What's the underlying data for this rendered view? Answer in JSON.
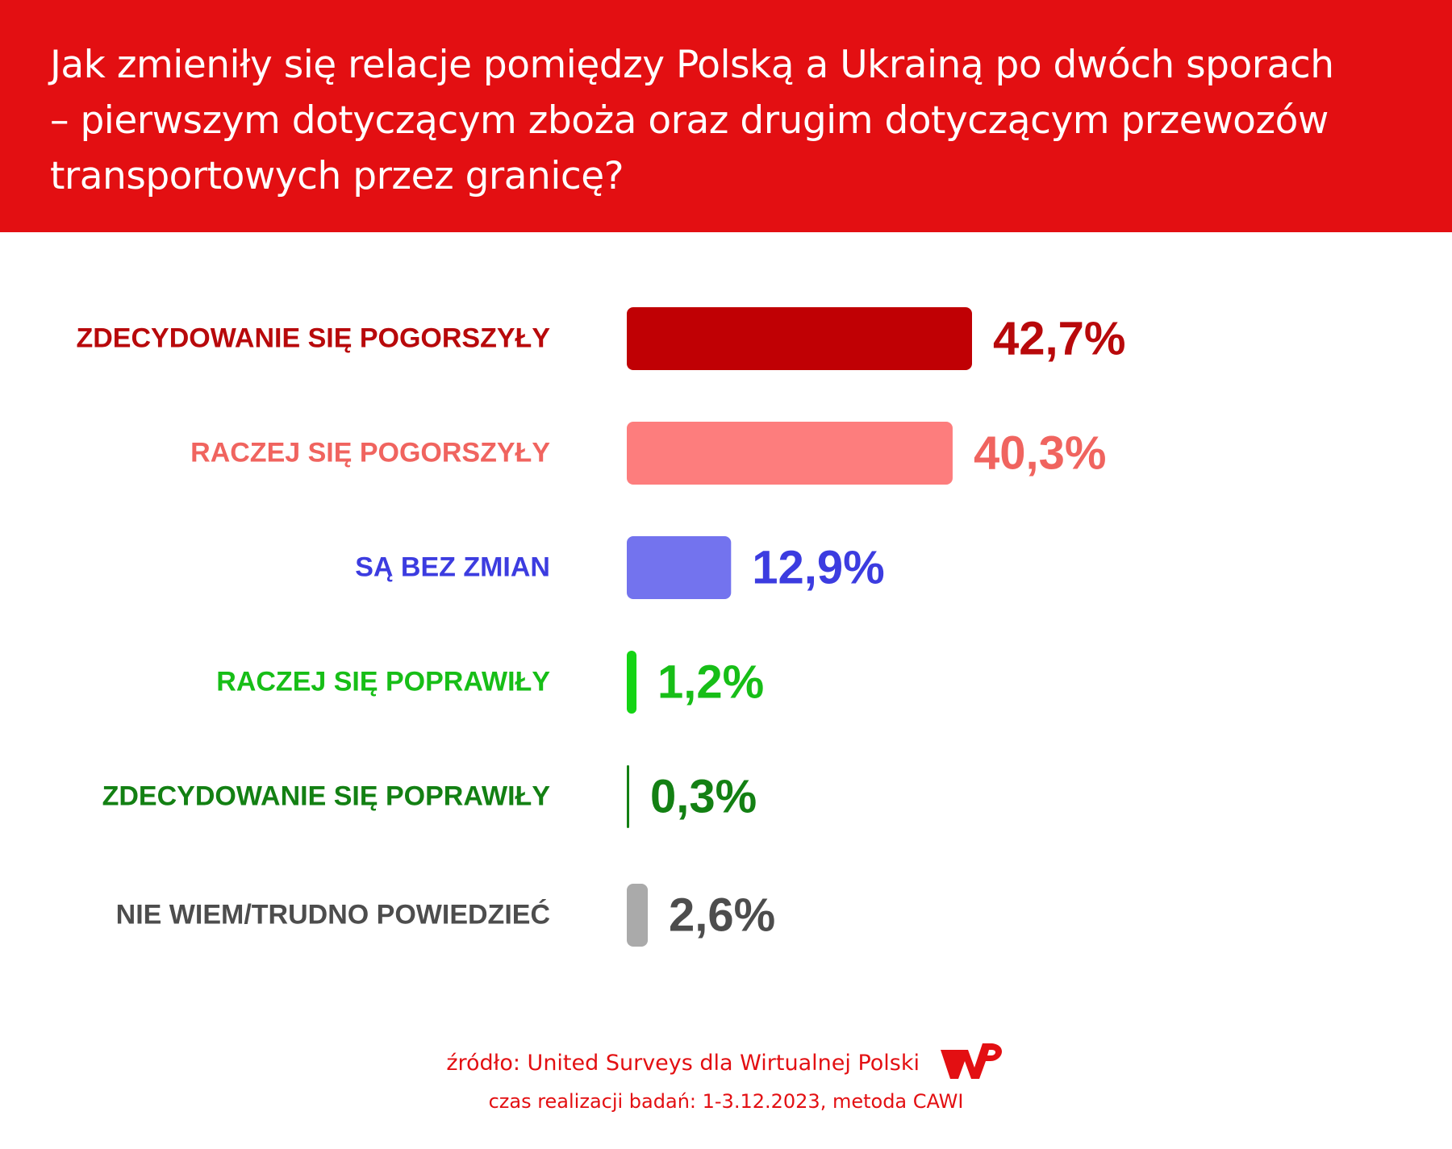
{
  "header": {
    "title_lines": [
      "Jak zmieniły się relacje pomiędzy Polską a Ukrainą po dwóch sporach",
      "– pierwszym dotyczącym zboża oraz drugim dotyczącym przewozów",
      "transportowych przez granicę?"
    ]
  },
  "colors": {
    "header_bg": "#e30f12",
    "brand_red": "#e30f12"
  },
  "chart_data": {
    "type": "bar",
    "orientation": "horizontal",
    "title": "Jak zmieniły się relacje pomiędzy Polską a Ukrainą po dwóch sporach – pierwszym dotyczącym zboża oraz drugim dotyczącym przewozów transportowych przez granicę?",
    "categories": [
      "ZDECYDOWANIE SIĘ POGORSZYŁY",
      "RACZEJ SIĘ POGORSZYŁY",
      "SĄ BEZ ZMIAN",
      "RACZEJ SIĘ POPRAWIŁY",
      "ZDECYDOWANIE SIĘ POPRAWIŁY",
      "NIE WIEM/TRUDNO POWIEDZIEĆ"
    ],
    "values": [
      42.7,
      40.3,
      12.9,
      1.2,
      0.3,
      2.6
    ],
    "value_labels": [
      "42,7%",
      "40,3%",
      "12,9%",
      "1,2%",
      "0,3%",
      "2,6%"
    ],
    "bar_colors": [
      "#c00004",
      "#fd7d7d",
      "#7373ee",
      "#14d414",
      "#138013",
      "#aaaaaa"
    ],
    "label_colors": [
      "#b8090b",
      "#f0645f",
      "#3c3ce0",
      "#17be17",
      "#138013",
      "#4d4d4d"
    ],
    "xlim": [
      0,
      42.7
    ],
    "xlabel": "",
    "ylabel": "",
    "grid": false,
    "legend": "none"
  },
  "footer": {
    "source": "źródło: United Surveys dla Wirtualnej Polski",
    "meta": "czas realizacji badań: 1-3.12.2023, metoda CAWI",
    "logo_text": "WP"
  }
}
